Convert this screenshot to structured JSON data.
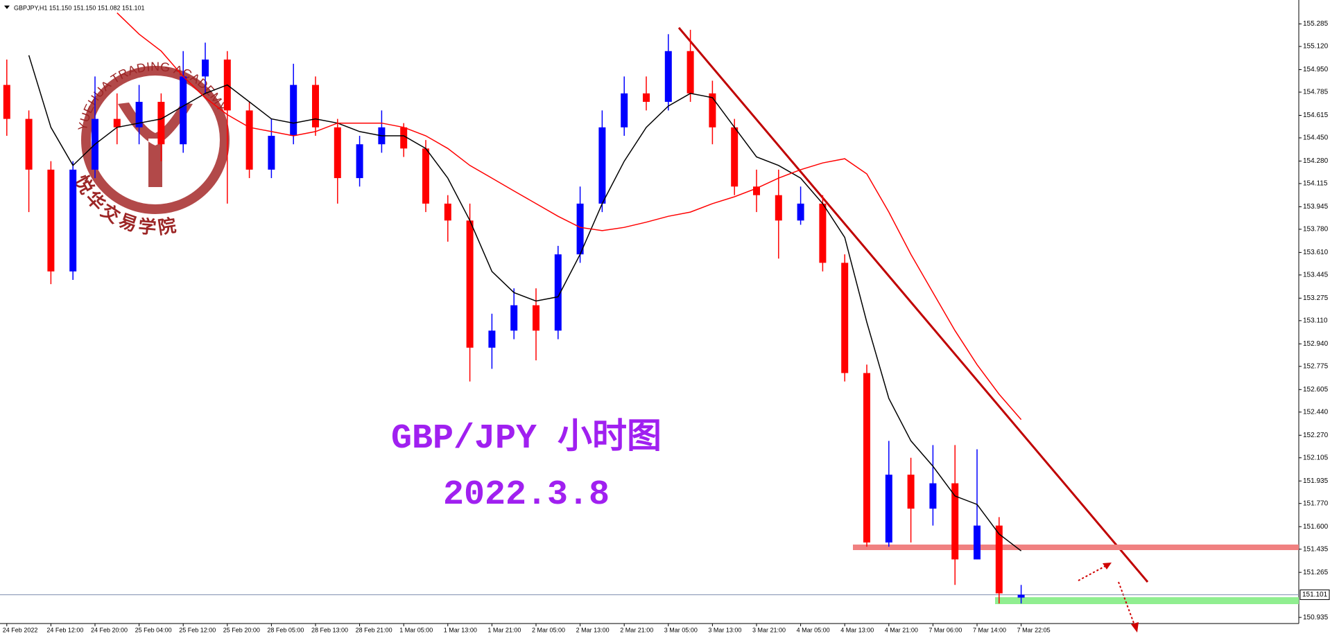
{
  "chart_data": {
    "type": "candlestick",
    "title": "GBPJPY,H1  151.150 151.150 151.082 151.101",
    "categories": [
      "24 Feb 2022",
      null,
      "24 Feb 12:00",
      null,
      "24 Feb 20:00",
      null,
      "25 Feb 04:00",
      null,
      "25 Feb 12:00",
      null,
      "25 Feb 20:00",
      null,
      "28 Feb 05:00",
      null,
      "28 Feb 13:00",
      null,
      "28 Feb 21:00",
      null,
      "1 Mar 05:00",
      null,
      "1 Mar 13:00",
      null,
      "1 Mar 21:00",
      null,
      "2 Mar 05:00",
      null,
      "2 Mar 13:00",
      null,
      "2 Mar 21:00",
      null,
      "3 Mar 05:00",
      null,
      "3 Mar 13:00",
      null,
      "3 Mar 21:00",
      null,
      "4 Mar 05:00",
      null,
      "4 Mar 13:00",
      null,
      "4 Mar 21:00",
      null,
      "7 Mar 06:00",
      null,
      "7 Mar 14:00",
      null,
      "7 Mar 22:05"
    ],
    "open": [
      154.838,
      154.589,
      154.217,
      153.471,
      154.217,
      154.589,
      154.527,
      154.714,
      154.403,
      154.9,
      155.024,
      154.651,
      154.217,
      154.465,
      154.838,
      154.527,
      154.155,
      154.403,
      154.527,
      154.372,
      153.968,
      153.844,
      152.912,
      153.037,
      153.223,
      153.037,
      153.596,
      153.968,
      154.527,
      154.776,
      154.714,
      155.086,
      154.776,
      154.527,
      154.093,
      154.03,
      153.844,
      153.968,
      153.534,
      152.726,
      151.484,
      151.981,
      151.732,
      151.918,
      151.36,
      151.608,
      151.08
    ],
    "high": [
      155.024,
      154.651,
      154.279,
      154.279,
      154.9,
      154.776,
      154.838,
      154.776,
      155.086,
      155.148,
      155.086,
      154.714,
      154.589,
      154.993,
      154.9,
      154.589,
      154.465,
      154.651,
      154.558,
      154.434,
      154.03,
      153.968,
      153.161,
      153.347,
      153.347,
      153.658,
      154.093,
      154.651,
      154.9,
      154.9,
      155.21,
      155.242,
      154.869,
      154.589,
      154.217,
      154.217,
      154.093,
      154.03,
      153.596,
      152.788,
      152.229,
      152.105,
      152.198,
      152.198,
      152.167,
      151.67,
      151.173
    ],
    "low": [
      154.465,
      153.906,
      153.378,
      153.409,
      154.155,
      154.403,
      154.403,
      154.279,
      154.341,
      154.776,
      153.968,
      154.155,
      154.155,
      154.403,
      154.465,
      153.968,
      154.093,
      154.341,
      154.31,
      153.906,
      153.689,
      152.664,
      152.757,
      152.974,
      152.819,
      152.974,
      153.534,
      153.906,
      154.465,
      154.651,
      154.651,
      154.714,
      154.403,
      154.03,
      153.906,
      153.565,
      153.813,
      153.471,
      152.664,
      151.453,
      151.453,
      151.484,
      151.608,
      151.173,
      151.36,
      151.037,
      151.037
    ],
    "close": [
      154.589,
      154.217,
      153.471,
      154.217,
      154.589,
      154.527,
      154.714,
      154.403,
      154.9,
      155.024,
      154.651,
      154.217,
      154.465,
      154.838,
      154.527,
      154.155,
      154.403,
      154.527,
      154.372,
      153.968,
      153.844,
      152.912,
      153.037,
      153.223,
      153.037,
      153.596,
      153.968,
      154.527,
      154.776,
      154.714,
      155.086,
      154.776,
      154.527,
      154.093,
      154.03,
      153.844,
      153.968,
      153.534,
      152.726,
      151.484,
      151.981,
      151.732,
      151.918,
      151.36,
      151.608,
      151.111,
      151.101
    ],
    "up_color": "#0000ff",
    "down_color": "#ff0000",
    "lines": [
      {
        "color": "#000000",
        "values": [
          null,
          155.055,
          154.527,
          154.248,
          154.403,
          154.527,
          154.558,
          154.589,
          154.683,
          154.776,
          154.838,
          154.714,
          154.589,
          154.558,
          154.589,
          154.558,
          154.496,
          154.465,
          154.465,
          154.372,
          154.155,
          153.844,
          153.471,
          153.316,
          153.254,
          153.285,
          153.596,
          153.968,
          154.279,
          154.527,
          154.683,
          154.776,
          154.745,
          154.527,
          154.31,
          154.248,
          154.155,
          153.968,
          153.72,
          153.099,
          152.54,
          152.229,
          152.043,
          151.825,
          151.763,
          151.546,
          151.422
        ]
      },
      {
        "color": "#ff0000",
        "values": [
          null,
          null,
          null,
          null,
          null,
          155.366,
          155.21,
          155.086,
          154.9,
          154.745,
          154.62,
          154.527,
          154.496,
          154.465,
          154.496,
          154.558,
          154.558,
          154.558,
          154.527,
          154.465,
          154.372,
          154.248,
          154.155,
          154.061,
          153.968,
          153.875,
          153.794,
          153.77,
          153.794,
          153.832,
          153.875,
          153.906,
          153.968,
          154.018,
          154.08,
          154.155,
          154.217,
          154.266,
          154.297,
          154.186,
          153.906,
          153.596,
          153.316,
          153.037,
          152.788,
          152.571,
          152.385
        ]
      }
    ],
    "ylim": [
      150.89,
      155.43
    ],
    "yticks": [
      155.285,
      {
        "value": 155.12,
        "label": "155.120"
      },
      {
        "value": 154.95,
        "label": "154.950"
      },
      154.785,
      154.615,
      {
        "value": 154.45,
        "label": "154.450"
      },
      {
        "value": 154.28,
        "label": "154.280"
      },
      154.115,
      153.945,
      {
        "value": 153.78,
        "label": "153.780"
      },
      {
        "value": 153.61,
        "label": "153.610"
      },
      153.445,
      153.275,
      {
        "value": 153.11,
        "label": "153.110"
      },
      {
        "value": 152.94,
        "label": "152.940"
      },
      152.775,
      152.605,
      {
        "value": 152.44,
        "label": "152.440"
      },
      {
        "value": 152.27,
        "label": "152.270"
      },
      152.105,
      151.935,
      {
        "value": 151.77,
        "label": "151.770"
      },
      {
        "value": 151.6,
        "label": "151.600"
      },
      151.435,
      151.265,
      150.935
    ],
    "current_price": 151.101,
    "grid": false,
    "annotations": [
      "GBP/JPY 小时图",
      "2022.3.8"
    ],
    "watermark": {
      "arc_text": "YUEHUA TRADING ACADEMY",
      "text": "悦华交易学院"
    }
  }
}
